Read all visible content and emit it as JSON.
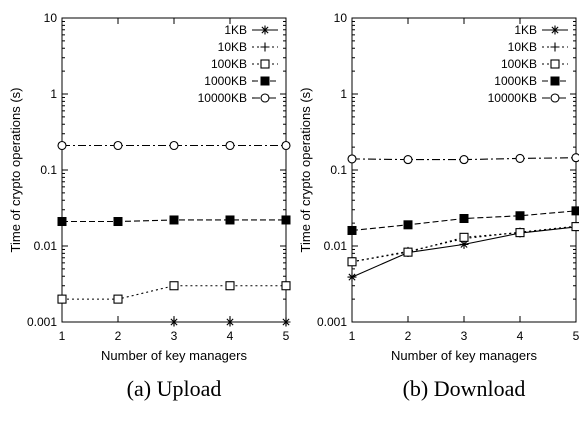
{
  "chart_data": [
    {
      "type": "line",
      "caption": "(a) Upload",
      "xlabel": "Number of key managers",
      "ylabel": "Time of crypto operations (s)",
      "yscale": "log",
      "ylim": [
        0.001,
        10
      ],
      "xlim": [
        1,
        5
      ],
      "x_ticks": [
        "1",
        "2",
        "3",
        "4",
        "5"
      ],
      "y_ticks": [
        "0.001",
        "0.01",
        "0.1",
        "1",
        "10"
      ],
      "legend_position": "top-right",
      "grid": false,
      "series": [
        {
          "name": "1KB",
          "marker": "star",
          "dash": "solid",
          "x": [
            3,
            4,
            5
          ],
          "values": [
            0.001,
            0.001,
            0.001
          ]
        },
        {
          "name": "10KB",
          "marker": "plus",
          "dash": "dotted",
          "x": [
            3,
            4,
            5
          ],
          "values": [
            0.001,
            0.001,
            0.001
          ]
        },
        {
          "name": "100KB",
          "marker": "open-square",
          "dash": "dotted",
          "x": [
            1,
            2,
            3,
            4,
            5
          ],
          "values": [
            0.002,
            0.002,
            0.003,
            0.003,
            0.003
          ]
        },
        {
          "name": "1000KB",
          "marker": "filled-square",
          "dash": "dashed",
          "x": [
            1,
            2,
            3,
            4,
            5
          ],
          "values": [
            0.021,
            0.021,
            0.022,
            0.022,
            0.022
          ]
        },
        {
          "name": "10000KB",
          "marker": "open-circle",
          "dash": "dash-dot",
          "x": [
            1,
            2,
            3,
            4,
            5
          ],
          "values": [
            0.21,
            0.21,
            0.21,
            0.21,
            0.21
          ]
        }
      ]
    },
    {
      "type": "line",
      "caption": "(b) Download",
      "xlabel": "Number of key managers",
      "ylabel": "Time of crypto operations (s)",
      "yscale": "log",
      "ylim": [
        0.001,
        10
      ],
      "xlim": [
        1,
        5
      ],
      "x_ticks": [
        "1",
        "2",
        "3",
        "4",
        "5"
      ],
      "y_ticks": [
        "0.001",
        "0.01",
        "0.1",
        "1",
        "10"
      ],
      "legend_position": "top-right",
      "grid": false,
      "series": [
        {
          "name": "1KB",
          "marker": "star",
          "dash": "solid",
          "x": [
            1,
            2,
            3,
            4,
            5
          ],
          "values": [
            0.0039,
            0.0082,
            0.0105,
            0.0148,
            0.0178
          ]
        },
        {
          "name": "10KB",
          "marker": "plus",
          "dash": "dotted",
          "x": [
            1,
            2,
            3,
            4,
            5
          ],
          "values": [
            0.0062,
            0.0085,
            0.0125,
            0.0152,
            0.0182
          ]
        },
        {
          "name": "100KB",
          "marker": "open-square",
          "dash": "dotted",
          "x": [
            1,
            2,
            3,
            4,
            5
          ],
          "values": [
            0.0062,
            0.0083,
            0.013,
            0.015,
            0.018
          ]
        },
        {
          "name": "1000KB",
          "marker": "filled-square",
          "dash": "dashed",
          "x": [
            1,
            2,
            3,
            4,
            5
          ],
          "values": [
            0.016,
            0.019,
            0.023,
            0.025,
            0.029
          ]
        },
        {
          "name": "10000KB",
          "marker": "open-circle",
          "dash": "dash-dot",
          "x": [
            1,
            2,
            3,
            4,
            5
          ],
          "values": [
            0.14,
            0.137,
            0.137,
            0.142,
            0.145
          ]
        }
      ]
    }
  ]
}
